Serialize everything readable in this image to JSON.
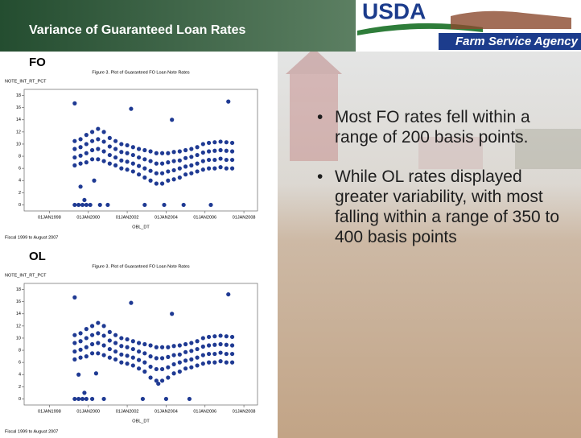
{
  "header": {
    "title": "Variance of Guaranteed Loan Rates",
    "logo_text": "USDA",
    "agency": "Farm Service Agency"
  },
  "chart_data": [
    {
      "type": "scatter",
      "label": "FO",
      "title": "Figure 3. Plot of Guaranteed FO Loan Note Rates",
      "ylabel": "NOTE_INT_RT_PCT",
      "xlabel": "OBL_DT",
      "footnote": "Fiscal 1999 to August 2007",
      "color": "#1f3a93",
      "xlim": [
        1996.7,
        2008.7
      ],
      "ylim": [
        -1,
        19
      ],
      "xticks": [
        {
          "value": 1998,
          "label": "01JAN1998"
        },
        {
          "value": 2000,
          "label": "01JAN2000"
        },
        {
          "value": 2002,
          "label": "01JAN2002"
        },
        {
          "value": 2004,
          "label": "01JAN2004"
        },
        {
          "value": 2006,
          "label": "01JAN2006"
        },
        {
          "value": 2008,
          "label": "01JAN2008"
        }
      ],
      "yticks": [
        0,
        2,
        4,
        6,
        8,
        10,
        12,
        14,
        16,
        18
      ],
      "x": [
        1999.3,
        1999.3,
        1999.3,
        1999.3,
        1999.6,
        1999.6,
        1999.6,
        1999.6,
        1999.9,
        1999.9,
        1999.9,
        1999.9,
        2000.2,
        2000.2,
        2000.2,
        2000.2,
        2000.5,
        2000.5,
        2000.5,
        2000.5,
        2000.8,
        2000.8,
        2000.8,
        2000.8,
        2001.1,
        2001.1,
        2001.1,
        2001.1,
        2001.4,
        2001.4,
        2001.4,
        2001.4,
        2001.7,
        2001.7,
        2001.7,
        2001.7,
        2002.0,
        2002.0,
        2002.0,
        2002.0,
        2002.3,
        2002.3,
        2002.3,
        2002.3,
        2002.6,
        2002.6,
        2002.6,
        2002.6,
        2002.9,
        2002.9,
        2002.9,
        2002.9,
        2003.2,
        2003.2,
        2003.2,
        2003.2,
        2003.5,
        2003.5,
        2003.5,
        2003.5,
        2003.8,
        2003.8,
        2003.8,
        2003.8,
        2004.1,
        2004.1,
        2004.1,
        2004.1,
        2004.4,
        2004.4,
        2004.4,
        2004.4,
        2004.7,
        2004.7,
        2004.7,
        2004.7,
        2005.0,
        2005.0,
        2005.0,
        2005.0,
        2005.3,
        2005.3,
        2005.3,
        2005.3,
        2005.6,
        2005.6,
        2005.6,
        2005.6,
        2005.9,
        2005.9,
        2005.9,
        2005.9,
        2006.2,
        2006.2,
        2006.2,
        2006.2,
        2006.5,
        2006.5,
        2006.5,
        2006.5,
        2006.8,
        2006.8,
        2006.8,
        2006.8,
        2007.1,
        2007.1,
        2007.1,
        2007.1,
        2007.4,
        2007.4,
        2007.4,
        2007.4,
        1999.3,
        2002.2,
        2004.3,
        2007.2,
        1999.6,
        2000.3,
        1999.8,
        1999.3,
        1999.5,
        1999.7,
        1999.9,
        2000.1,
        2000.6,
        2001.0,
        2002.9,
        2003.9,
        2004.9,
        2006.3
      ],
      "values": [
        6.5,
        7.8,
        9.2,
        10.5,
        6.8,
        8.1,
        9.5,
        10.8,
        7,
        8.5,
        10,
        11.5,
        7.5,
        9,
        10.5,
        12,
        7.5,
        9.2,
        10.8,
        12.5,
        7.2,
        8.8,
        10.4,
        12,
        6.8,
        8.2,
        9.6,
        11,
        6.5,
        7.8,
        9.2,
        10.5,
        6,
        7.3,
        8.7,
        10,
        5.8,
        7.1,
        8.5,
        9.8,
        5.5,
        6.8,
        8.2,
        9.5,
        5,
        6.4,
        7.8,
        9.2,
        4.5,
        6,
        7.5,
        9,
        4,
        5.6,
        7.2,
        8.8,
        3.5,
        5.2,
        6.8,
        8.5,
        3.5,
        5.2,
        6.8,
        8.5,
        4,
        5.5,
        7,
        8.5,
        4.2,
        5.7,
        7.2,
        8.7,
        4.5,
        6,
        7.3,
        8.8,
        5,
        6.3,
        7.7,
        9,
        5.2,
        6.5,
        7.9,
        9.2,
        5.5,
        6.8,
        8.2,
        9.5,
        5.8,
        7.2,
        8.6,
        10,
        6,
        7.4,
        8.8,
        10.2,
        6,
        7.4,
        8.9,
        10.3,
        6.2,
        7.6,
        9,
        10.4,
        6,
        7.4,
        8.9,
        10.3,
        6,
        7.4,
        8.8,
        10.2,
        16.7,
        15.8,
        14,
        17,
        3,
        4,
        0.8,
        0,
        0,
        0,
        0,
        0,
        0,
        0,
        0,
        0,
        0,
        0
      ]
    },
    {
      "type": "scatter",
      "label": "OL",
      "title": "Figure 3. Plot of Guaranteed FO Loan Note Rates",
      "ylabel": "NOTE_INT_RT_PCT",
      "xlabel": "OBL_DT",
      "footnote": "Fiscal 1999 to August 2007",
      "color": "#1f3a93",
      "xlim": [
        1996.7,
        2008.7
      ],
      "ylim": [
        -1,
        19
      ],
      "xticks": [
        {
          "value": 1998,
          "label": "01JAN1998"
        },
        {
          "value": 2000,
          "label": "01JAN2000"
        },
        {
          "value": 2002,
          "label": "01JAN2002"
        },
        {
          "value": 2004,
          "label": "01JAN2004"
        },
        {
          "value": 2006,
          "label": "01JAN2006"
        },
        {
          "value": 2008,
          "label": "01JAN2008"
        }
      ],
      "yticks": [
        0,
        2,
        4,
        6,
        8,
        10,
        12,
        14,
        16,
        18
      ],
      "x": [
        1999.3,
        1999.3,
        1999.3,
        1999.3,
        1999.6,
        1999.6,
        1999.6,
        1999.6,
        1999.9,
        1999.9,
        1999.9,
        1999.9,
        2000.2,
        2000.2,
        2000.2,
        2000.2,
        2000.5,
        2000.5,
        2000.5,
        2000.5,
        2000.8,
        2000.8,
        2000.8,
        2000.8,
        2001.1,
        2001.1,
        2001.1,
        2001.1,
        2001.4,
        2001.4,
        2001.4,
        2001.4,
        2001.7,
        2001.7,
        2001.7,
        2001.7,
        2002.0,
        2002.0,
        2002.0,
        2002.0,
        2002.3,
        2002.3,
        2002.3,
        2002.3,
        2002.6,
        2002.6,
        2002.6,
        2002.6,
        2002.9,
        2002.9,
        2002.9,
        2002.9,
        2003.2,
        2003.2,
        2003.2,
        2003.2,
        2003.5,
        2003.5,
        2003.5,
        2003.5,
        2003.8,
        2003.8,
        2003.8,
        2003.8,
        2004.1,
        2004.1,
        2004.1,
        2004.1,
        2004.4,
        2004.4,
        2004.4,
        2004.4,
        2004.7,
        2004.7,
        2004.7,
        2004.7,
        2005.0,
        2005.0,
        2005.0,
        2005.0,
        2005.3,
        2005.3,
        2005.3,
        2005.3,
        2005.6,
        2005.6,
        2005.6,
        2005.6,
        2005.9,
        2005.9,
        2005.9,
        2005.9,
        2006.2,
        2006.2,
        2006.2,
        2006.2,
        2006.5,
        2006.5,
        2006.5,
        2006.5,
        2006.8,
        2006.8,
        2006.8,
        2006.8,
        2007.1,
        2007.1,
        2007.1,
        2007.1,
        2007.4,
        2007.4,
        2007.4,
        2007.4,
        1999.3,
        2002.2,
        2004.3,
        2007.2,
        1999.5,
        2000.4,
        2003.6,
        1999.8,
        1999.3,
        1999.5,
        1999.7,
        1999.9,
        2000.2,
        2000.8,
        2002.8,
        2004.0,
        2005.2
      ],
      "values": [
        6.5,
        7.8,
        9.2,
        10.5,
        6.8,
        8.1,
        9.5,
        10.8,
        7,
        8.5,
        10,
        11.5,
        7.5,
        9,
        10.5,
        12,
        7.5,
        9.2,
        10.8,
        12.5,
        7.2,
        8.8,
        10.4,
        12,
        6.8,
        8.2,
        9.6,
        11,
        6.5,
        7.8,
        9.2,
        10.5,
        6,
        7.3,
        8.7,
        10,
        5.8,
        7.1,
        8.5,
        9.8,
        5.5,
        6.8,
        8.2,
        9.5,
        5,
        6.4,
        7.8,
        9.2,
        4.5,
        6,
        7.5,
        9,
        3.5,
        5.3,
        7,
        8.8,
        3,
        4.9,
        6.7,
        8.5,
        3,
        4.9,
        6.7,
        8.5,
        3.5,
        5.2,
        6.9,
        8.5,
        4.2,
        5.7,
        7.2,
        8.7,
        4.5,
        6,
        7.3,
        8.8,
        5,
        6.3,
        7.7,
        9,
        5.2,
        6.5,
        7.9,
        9.2,
        5.5,
        6.8,
        8.2,
        9.5,
        5.8,
        7.2,
        8.6,
        10,
        6,
        7.4,
        8.8,
        10.2,
        6,
        7.4,
        8.9,
        10.3,
        6.2,
        7.6,
        9,
        10.4,
        6,
        7.4,
        8.9,
        10.3,
        6,
        7.4,
        8.8,
        10.2,
        16.7,
        15.8,
        14,
        17.2,
        4,
        4.2,
        2.5,
        1,
        0,
        0,
        0,
        0,
        0,
        0,
        0,
        0,
        0
      ]
    }
  ],
  "bullets": [
    "Most FO rates fell within a range of 200 basis points.",
    "While OL rates displayed greater variability, with most falling within a range of 350 to 400 basis points"
  ]
}
